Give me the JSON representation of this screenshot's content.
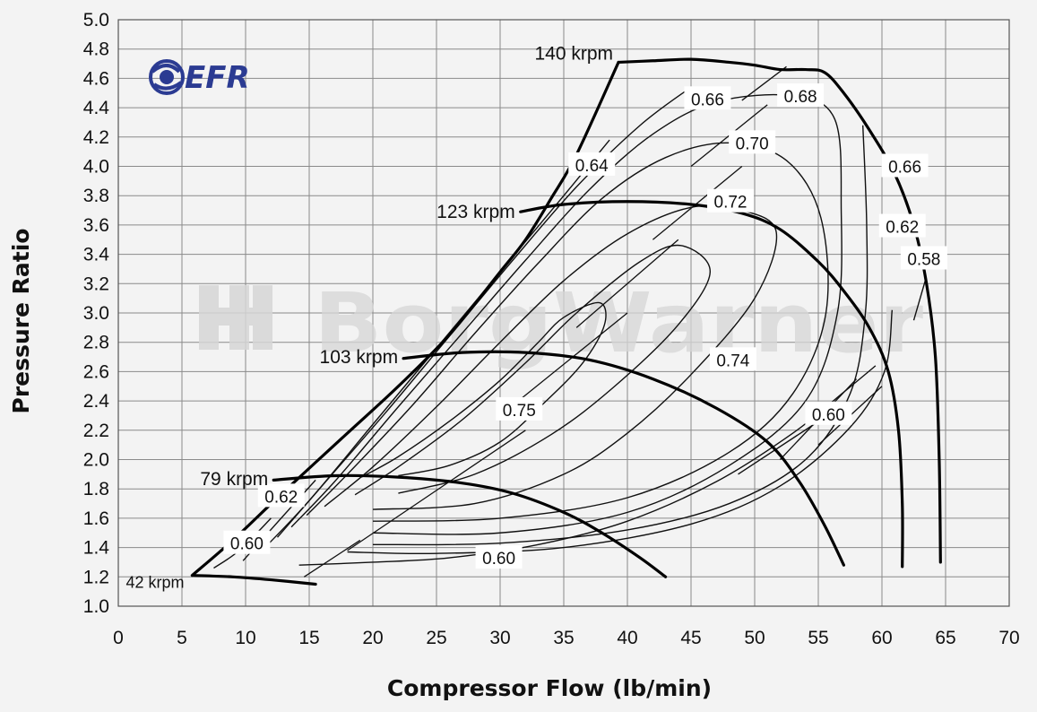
{
  "chart_data": {
    "type": "line",
    "title": "",
    "xlabel": "Compressor Flow (lb/min)",
    "ylabel": "Pressure Ratio",
    "xlim": [
      0,
      70
    ],
    "ylim": [
      1.0,
      5.0
    ],
    "x_ticks": [
      "0",
      "5",
      "10",
      "15",
      "20",
      "25",
      "30",
      "35",
      "40",
      "45",
      "50",
      "55",
      "60",
      "65",
      "70"
    ],
    "y_ticks": [
      "1.0",
      "1.2",
      "1.4",
      "1.6",
      "1.8",
      "2.0",
      "2.2",
      "2.4",
      "2.6",
      "2.8",
      "3.0",
      "3.2",
      "3.4",
      "3.6",
      "3.8",
      "4.0",
      "4.2",
      "4.4",
      "4.6",
      "4.8",
      "5.0"
    ],
    "grid": true,
    "logo_text": "EFR",
    "watermark": "BorgWarner",
    "surge_line": [
      [
        5.8,
        1.21
      ],
      [
        9,
        1.45
      ],
      [
        13,
        1.78
      ],
      [
        18,
        2.18
      ],
      [
        22,
        2.5
      ],
      [
        26,
        2.85
      ],
      [
        30,
        3.28
      ],
      [
        32,
        3.5
      ],
      [
        34,
        3.78
      ],
      [
        36,
        4.08
      ],
      [
        39.3,
        4.71
      ]
    ],
    "speed_lines": [
      {
        "name": "140 krpm",
        "label_at": [
          39.3,
          4.77
        ],
        "points": [
          [
            39.3,
            4.71
          ],
          [
            42,
            4.72
          ],
          [
            45,
            4.73
          ],
          [
            48,
            4.71
          ],
          [
            50,
            4.69
          ],
          [
            52,
            4.66
          ],
          [
            54,
            4.66
          ],
          [
            55.5,
            4.64
          ],
          [
            57,
            4.5
          ],
          [
            59,
            4.25
          ],
          [
            61,
            3.95
          ],
          [
            62.5,
            3.6
          ],
          [
            63.5,
            3.2
          ],
          [
            64.2,
            2.7
          ],
          [
            64.5,
            2.0
          ],
          [
            64.6,
            1.3
          ]
        ]
      },
      {
        "name": "123 krpm",
        "label_at": [
          31.6,
          3.69
        ],
        "points": [
          [
            31.6,
            3.69
          ],
          [
            35,
            3.74
          ],
          [
            40,
            3.76
          ],
          [
            45,
            3.74
          ],
          [
            49,
            3.68
          ],
          [
            52,
            3.57
          ],
          [
            55,
            3.35
          ],
          [
            57,
            3.15
          ],
          [
            59,
            2.9
          ],
          [
            60.5,
            2.6
          ],
          [
            61.3,
            2.2
          ],
          [
            61.6,
            1.7
          ],
          [
            61.6,
            1.27
          ]
        ]
      },
      {
        "name": "103 krpm",
        "label_at": [
          22.4,
          2.7
        ],
        "points": [
          [
            22.4,
            2.69
          ],
          [
            27,
            2.73
          ],
          [
            32,
            2.73
          ],
          [
            37,
            2.68
          ],
          [
            42,
            2.55
          ],
          [
            47,
            2.35
          ],
          [
            51,
            2.12
          ],
          [
            53.5,
            1.85
          ],
          [
            55.5,
            1.55
          ],
          [
            57,
            1.28
          ]
        ]
      },
      {
        "name": "79 krpm",
        "label_at": [
          12.2,
          1.87
        ],
        "points": [
          [
            12.2,
            1.86
          ],
          [
            17,
            1.89
          ],
          [
            22,
            1.88
          ],
          [
            27,
            1.84
          ],
          [
            31,
            1.77
          ],
          [
            35,
            1.64
          ],
          [
            38,
            1.5
          ],
          [
            41,
            1.33
          ],
          [
            43,
            1.2
          ]
        ]
      },
      {
        "name": "42 krpm",
        "label_at": [
          0.6,
          1.15
        ],
        "points": [
          [
            5.9,
            1.21
          ],
          [
            9,
            1.2
          ],
          [
            12,
            1.18
          ],
          [
            15.5,
            1.15
          ]
        ]
      }
    ],
    "efficiency_islands": [
      {
        "label": "0.75",
        "label_at": [
          31.5,
          2.34
        ],
        "points": [
          [
            19.1,
            1.88
          ],
          [
            22,
            2.02
          ],
          [
            26,
            2.26
          ],
          [
            30,
            2.54
          ],
          [
            33,
            2.8
          ],
          [
            35,
            2.97
          ],
          [
            37.8,
            3.07
          ],
          [
            38.2,
            2.92
          ],
          [
            36.5,
            2.66
          ],
          [
            33.5,
            2.39
          ],
          [
            30,
            2.12
          ],
          [
            26,
            1.96
          ],
          [
            22,
            1.89
          ]
        ]
      },
      {
        "label": "0.74",
        "label_at": [
          48.3,
          2.68
        ],
        "points": [
          [
            18.6,
            1.76
          ],
          [
            22,
            1.95
          ],
          [
            27,
            2.27
          ],
          [
            32,
            2.66
          ],
          [
            36,
            3.0
          ],
          [
            41,
            3.35
          ],
          [
            44.2,
            3.46
          ],
          [
            46.5,
            3.28
          ],
          [
            44,
            2.92
          ],
          [
            39,
            2.5
          ],
          [
            34,
            2.17
          ],
          [
            28,
            1.9
          ],
          [
            22,
            1.77
          ]
        ]
      },
      {
        "label": "0.72",
        "label_at": [
          48.1,
          3.76
        ],
        "points": [
          [
            16.2,
            1.68
          ],
          [
            20,
            1.95
          ],
          [
            25,
            2.36
          ],
          [
            30,
            2.8
          ],
          [
            35,
            3.22
          ],
          [
            40,
            3.54
          ],
          [
            45,
            3.72
          ],
          [
            49,
            3.7
          ],
          [
            51.7,
            3.55
          ],
          [
            50,
            3.1
          ],
          [
            45,
            2.58
          ],
          [
            40,
            2.18
          ],
          [
            35,
            1.9
          ],
          [
            28,
            1.7
          ],
          [
            20,
            1.66
          ]
        ]
      },
      {
        "label": "0.70",
        "label_at": [
          49.8,
          4.16
        ],
        "points": [
          [
            14.8,
            1.62
          ],
          [
            18,
            1.9
          ],
          [
            23,
            2.36
          ],
          [
            28,
            2.86
          ],
          [
            33,
            3.34
          ],
          [
            38,
            3.78
          ],
          [
            43,
            4.06
          ],
          [
            48,
            4.16
          ],
          [
            52.5,
            4.04
          ],
          [
            55.2,
            3.65
          ],
          [
            55.6,
            3.0
          ],
          [
            53,
            2.45
          ],
          [
            48,
            2.05
          ],
          [
            40,
            1.74
          ],
          [
            30,
            1.6
          ],
          [
            20,
            1.58
          ]
        ]
      },
      {
        "label": "0.68",
        "label_at": [
          53.6,
          4.48
        ],
        "points": [
          [
            13.6,
            1.54
          ],
          [
            17,
            1.85
          ],
          [
            22,
            2.36
          ],
          [
            27,
            2.86
          ],
          [
            32,
            3.36
          ],
          [
            37,
            3.84
          ],
          [
            42,
            4.22
          ],
          [
            47,
            4.44
          ],
          [
            53,
            4.48
          ],
          [
            56.3,
            4.32
          ],
          [
            56.8,
            3.7
          ],
          [
            56.5,
            3.0
          ],
          [
            54,
            2.4
          ],
          [
            48,
            1.96
          ],
          [
            40,
            1.64
          ],
          [
            30,
            1.5
          ],
          [
            20,
            1.5
          ]
        ]
      },
      {
        "label": "0.66",
        "label_at": [
          46.3,
          4.46
        ],
        "points": [
          [
            12.5,
            1.47
          ],
          [
            16,
            1.82
          ],
          [
            21,
            2.32
          ],
          [
            26,
            2.84
          ],
          [
            31,
            3.36
          ],
          [
            36,
            3.86
          ],
          [
            41,
            4.28
          ],
          [
            45,
            4.54
          ]
        ]
      },
      {
        "label": "0.66",
        "label_at": [
          61.8,
          4.0
        ],
        "points": [
          [
            58.5,
            4.28
          ],
          [
            58.8,
            3.6
          ],
          [
            58.7,
            3.0
          ],
          [
            57.5,
            2.45
          ],
          [
            54,
            2.0
          ],
          [
            48,
            1.7
          ],
          [
            40,
            1.52
          ],
          [
            30,
            1.43
          ],
          [
            20,
            1.42
          ]
        ]
      },
      {
        "label": "0.64",
        "label_at": [
          37.2,
          4.01
        ],
        "points": [
          [
            11.3,
            1.38
          ],
          [
            15,
            1.72
          ],
          [
            20,
            2.24
          ],
          [
            25,
            2.76
          ],
          [
            30,
            3.28
          ],
          [
            35,
            3.8
          ],
          [
            38.6,
            4.18
          ]
        ]
      },
      {
        "label": "0.62",
        "label_at": [
          12.8,
          1.75
        ],
        "points": [
          [
            9.8,
            1.31
          ],
          [
            13,
            1.62
          ],
          [
            15.5,
            1.86
          ]
        ]
      },
      {
        "label": "0.62",
        "label_at": [
          61.6,
          3.59
        ],
        "points": [
          [
            60.8,
            3.02
          ],
          [
            60.2,
            2.6
          ],
          [
            57.5,
            2.22
          ],
          [
            52,
            1.82
          ],
          [
            45,
            1.56
          ],
          [
            35,
            1.4
          ],
          [
            25,
            1.36
          ],
          [
            18,
            1.37
          ]
        ]
      },
      {
        "label": "0.60",
        "label_at": [
          10.1,
          1.43
        ],
        "points": [
          [
            7.5,
            1.26
          ],
          [
            9.5,
            1.38
          ],
          [
            12,
            1.6
          ]
        ]
      },
      {
        "label": "0.60",
        "label_at": [
          29.9,
          1.33
        ],
        "points": [
          [
            14.2,
            1.28
          ],
          [
            20,
            1.3
          ],
          [
            26,
            1.33
          ],
          [
            33,
            1.42
          ],
          [
            40,
            1.58
          ],
          [
            47,
            1.85
          ],
          [
            53,
            2.18
          ],
          [
            57,
            2.46
          ],
          [
            59.5,
            2.64
          ]
        ]
      },
      {
        "label": "0.60",
        "label_at": [
          55.8,
          2.31
        ],
        "points": [
          [
            48.7,
            1.9
          ],
          [
            55,
            2.26
          ]
        ]
      },
      {
        "label": "0.58",
        "label_at": [
          63.3,
          3.37
        ],
        "points": [
          [
            63.4,
            3.22
          ],
          [
            62.5,
            2.95
          ]
        ]
      }
    ],
    "constant_efficiency_diagonals": [
      [
        [
          14.6,
          1.2
        ],
        [
          19.0,
          1.45
        ]
      ],
      [
        [
          18.0,
          1.38
        ],
        [
          32,
          2.2
        ]
      ],
      [
        [
          30,
          2.3
        ],
        [
          40,
          3.0
        ]
      ],
      [
        [
          36,
          2.9
        ],
        [
          44,
          3.5
        ]
      ],
      [
        [
          42,
          3.5
        ],
        [
          49,
          4.0
        ]
      ],
      [
        [
          45,
          4.0
        ],
        [
          51,
          4.42
        ]
      ],
      [
        [
          49,
          4.45
        ],
        [
          52.5,
          4.68
        ]
      ],
      [
        [
          52,
          2.0
        ],
        [
          58,
          2.55
        ]
      ],
      [
        [
          55,
          2.1
        ],
        [
          60,
          2.5
        ]
      ]
    ]
  }
}
